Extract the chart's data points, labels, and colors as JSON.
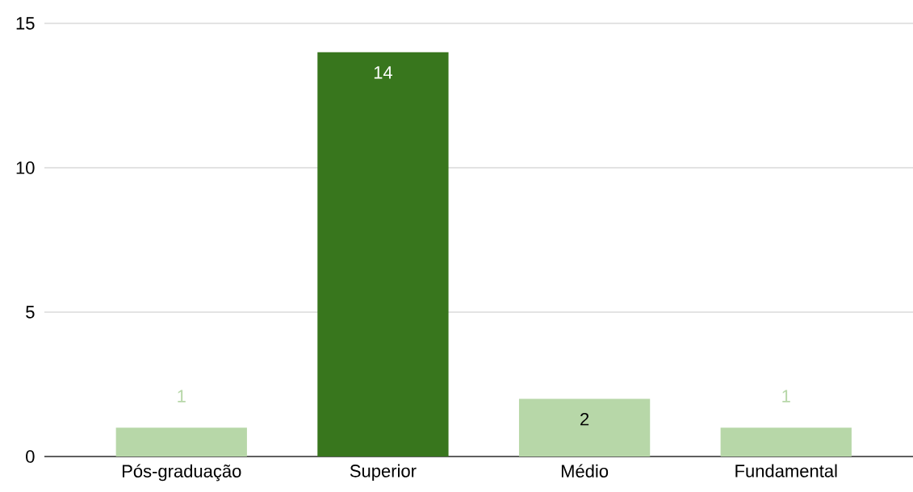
{
  "chart_data": {
    "type": "bar",
    "categories": [
      "Pós-graduação",
      "Superior",
      "Médio",
      "Fundamental"
    ],
    "values": [
      1,
      14,
      2,
      1
    ],
    "colors": [
      "#b7d7a8",
      "#38761d",
      "#b7d7a8",
      "#b7d7a8"
    ],
    "ylim": [
      0,
      15
    ],
    "yticks": [
      0,
      5,
      10,
      15
    ],
    "grid": "y",
    "data_labels": true
  }
}
